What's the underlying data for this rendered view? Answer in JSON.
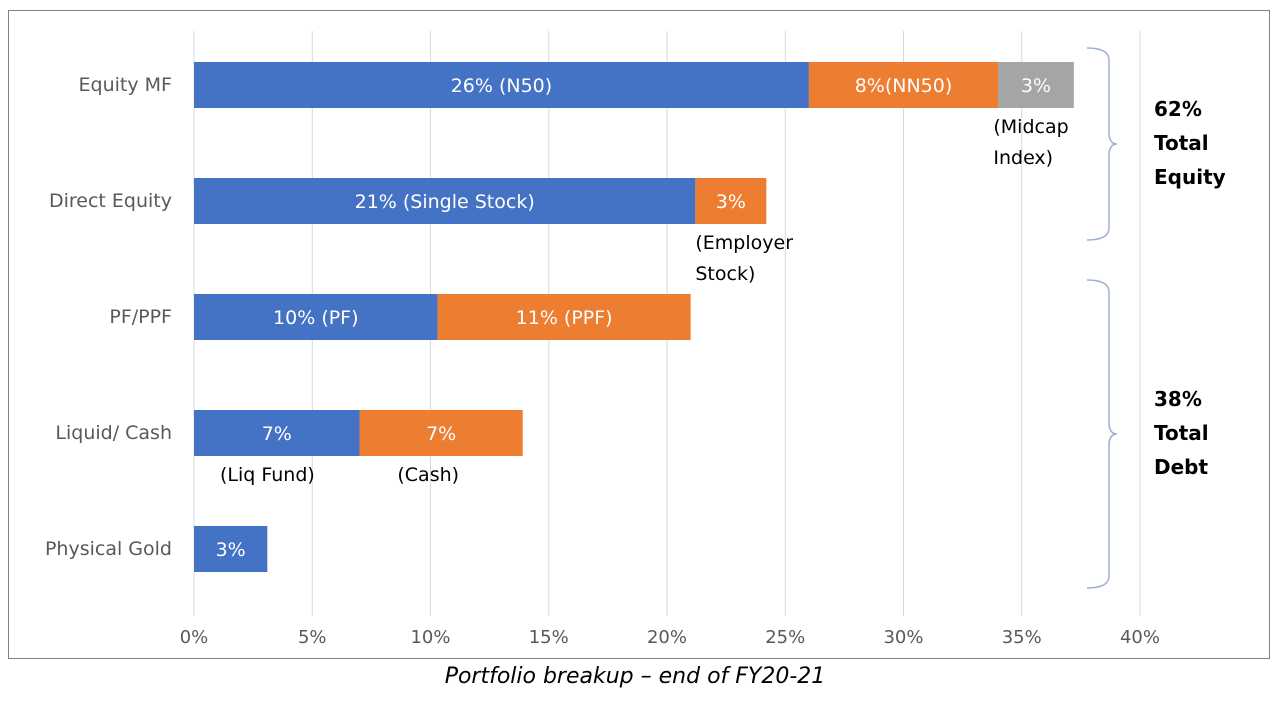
{
  "chart_data": {
    "type": "bar",
    "orientation": "horizontal",
    "stacked": true,
    "categories": [
      "Equity MF",
      "Direct Equity",
      "PF/PPF",
      "Liquid/ Cash",
      "Physical Gold"
    ],
    "xlim": [
      0,
      40
    ],
    "xticks": [
      "0%",
      "5%",
      "10%",
      "15%",
      "20%",
      "25%",
      "30%",
      "35%",
      "40%"
    ],
    "grid": "vertical",
    "colors": {
      "blue": "#4472c4",
      "orange": "#ed7d31",
      "gray": "#a5a5a5",
      "text": "#595959"
    },
    "bars": [
      {
        "category": "Equity MF",
        "segments": [
          {
            "value": 26,
            "color": "blue",
            "label": "26% (N50)"
          },
          {
            "value": 8,
            "color": "orange",
            "label": "8%(NN50)"
          },
          {
            "value": 3.2,
            "color": "gray",
            "label": "3%"
          }
        ]
      },
      {
        "category": "Direct Equity",
        "segments": [
          {
            "value": 21.2,
            "color": "blue",
            "label": "21% (Single Stock)"
          },
          {
            "value": 3,
            "color": "orange",
            "label": "3%"
          }
        ]
      },
      {
        "category": "PF/PPF",
        "segments": [
          {
            "value": 10.3,
            "color": "blue",
            "label": "10% (PF)"
          },
          {
            "value": 10.7,
            "color": "orange",
            "label": "11%  (PPF)"
          }
        ]
      },
      {
        "category": "Liquid/ Cash",
        "segments": [
          {
            "value": 7,
            "color": "blue",
            "label": "7%"
          },
          {
            "value": 6.9,
            "color": "orange",
            "label": "7%"
          }
        ]
      },
      {
        "category": "Physical Gold",
        "segments": [
          {
            "value": 3.1,
            "color": "blue",
            "label": "3%"
          }
        ]
      }
    ],
    "annotations": [
      {
        "lines": [
          "(Midcap",
          "Index)"
        ],
        "at_x": 33.8,
        "category": "Equity MF"
      },
      {
        "lines": [
          "(Employer",
          "Stock)"
        ],
        "at_x": 21.2,
        "category": "Direct Equity"
      },
      {
        "lines": [
          "(Liq Fund)"
        ],
        "at_x": 1.1,
        "category": "Liquid/ Cash"
      },
      {
        "lines": [
          "(Cash)"
        ],
        "at_x": 8.6,
        "category": "Liquid/ Cash"
      }
    ],
    "brace_groups": [
      {
        "lines": [
          "62%",
          "Total",
          "Equity"
        ],
        "from": "Equity MF",
        "to": "Direct Equity"
      },
      {
        "lines": [
          "38%",
          "Total",
          "Debt"
        ],
        "from": "PF/PPF",
        "to": "Physical Gold"
      }
    ]
  },
  "caption": "Portfolio breakup – end of FY20-21"
}
